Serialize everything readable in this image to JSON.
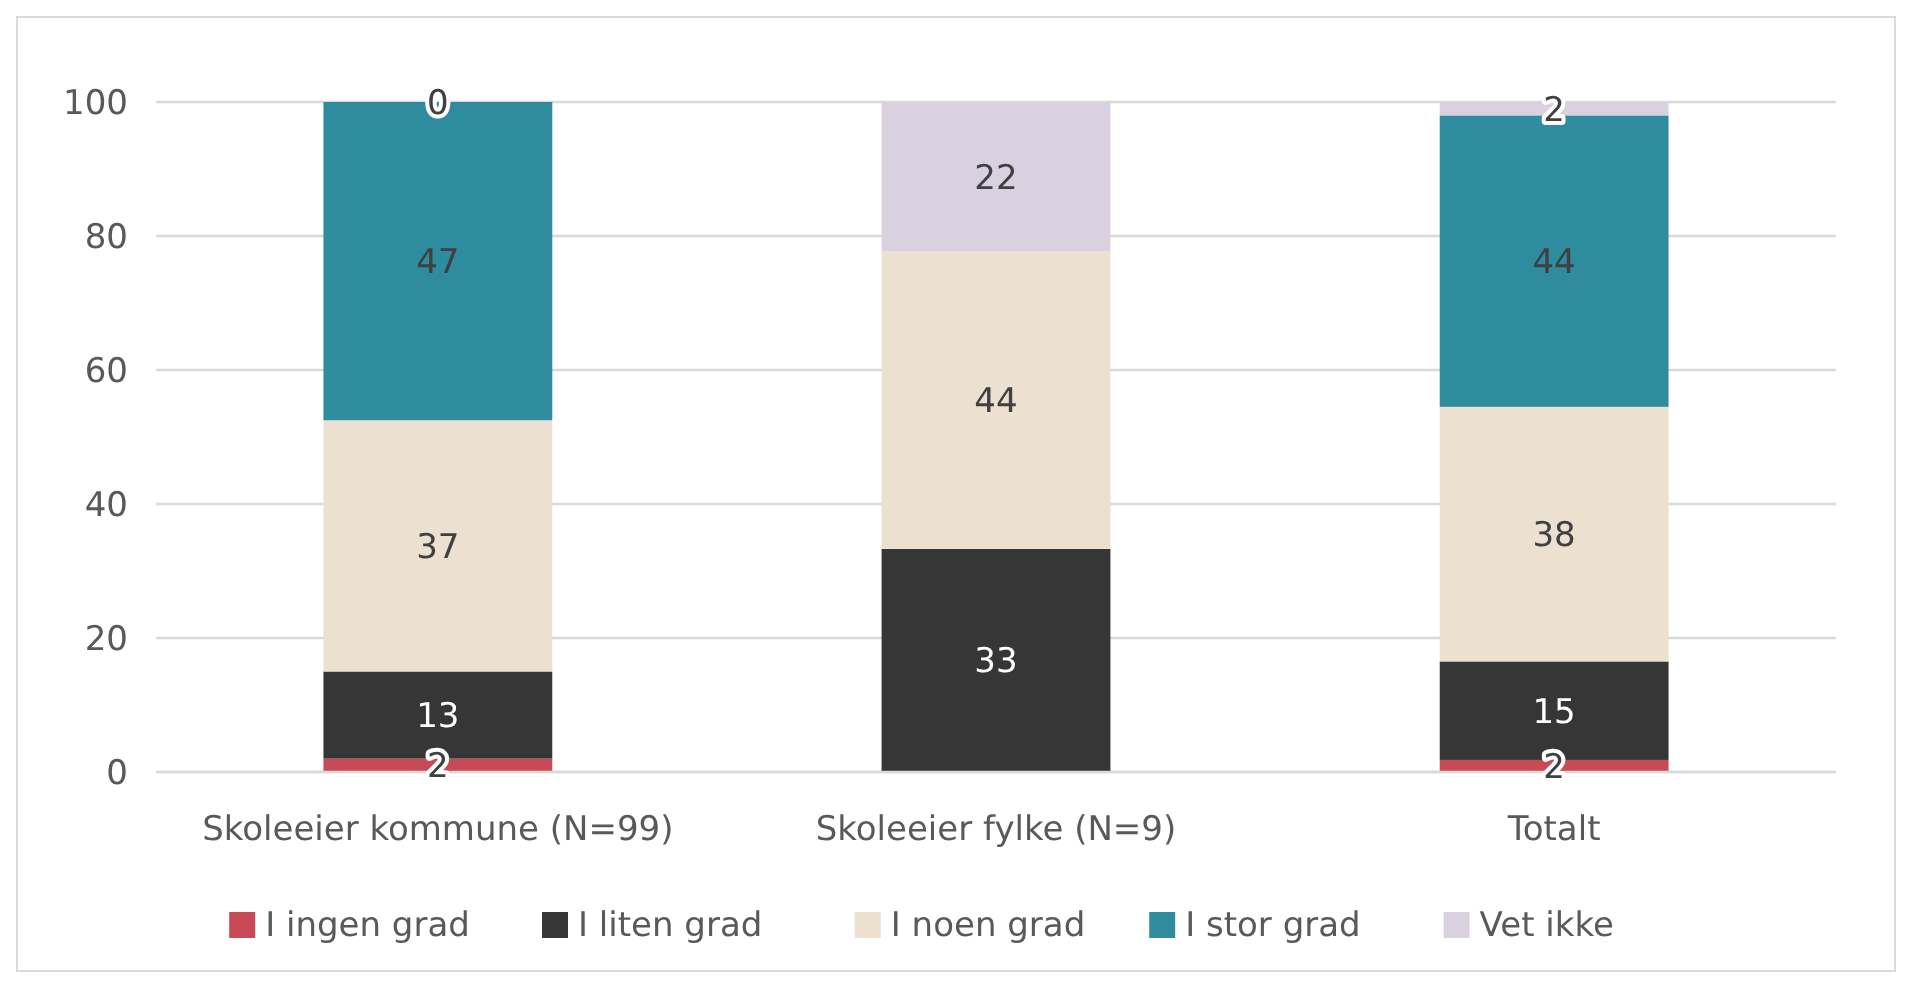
{
  "chart_data": {
    "type": "bar",
    "stacked": true,
    "categories": [
      "Skoleeier kommune (N=99)",
      "Skoleeier fylke (N=9)",
      "Totalt"
    ],
    "series": [
      {
        "name": "I ingen grad",
        "color": "#c84a56",
        "values": [
          2,
          0,
          1.8
        ],
        "value_labels": [
          "2",
          null,
          "2"
        ]
      },
      {
        "name": "I liten grad",
        "color": "#363636",
        "values": [
          13,
          33.3,
          14.7
        ],
        "value_labels": [
          "13",
          "33",
          "15"
        ]
      },
      {
        "name": "I noen grad",
        "color": "#ece0d0",
        "values": [
          37.5,
          44.4,
          38
        ],
        "value_labels": [
          "37",
          "44",
          "38"
        ]
      },
      {
        "name": "I stor grad",
        "color": "#2e8c9e",
        "values": [
          47.5,
          0,
          43.5
        ],
        "value_labels": [
          "47",
          null,
          "44"
        ]
      },
      {
        "name": "Vet ikke",
        "color": "#d9d1e0",
        "values": [
          0,
          22.2,
          2
        ],
        "value_labels": [
          "0",
          "22",
          "2"
        ]
      }
    ],
    "ylim": [
      0,
      100
    ],
    "yticks": [
      0,
      20,
      40,
      60,
      80,
      100
    ],
    "grid": "y",
    "legend": "bottom"
  }
}
